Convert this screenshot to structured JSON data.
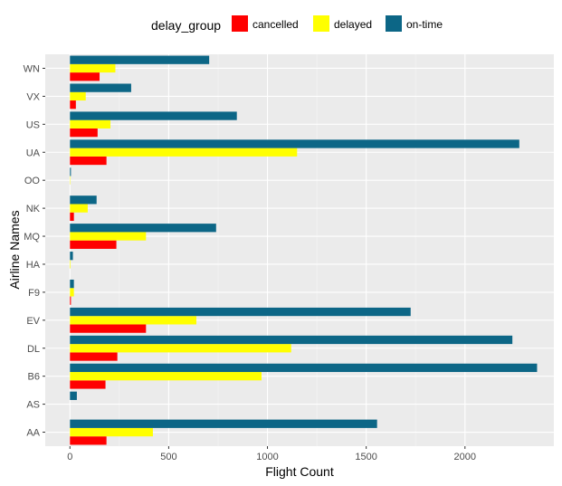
{
  "chart_data": {
    "type": "bar",
    "orientation": "horizontal",
    "title": "",
    "xlabel": "Flight Count",
    "ylabel": "Airline Names",
    "xlim": [
      -125,
      2450
    ],
    "xticks": [
      0,
      500,
      1000,
      1500,
      2000
    ],
    "categories": [
      "AA",
      "AS",
      "B6",
      "DL",
      "EV",
      "F9",
      "HA",
      "MQ",
      "NK",
      "OO",
      "UA",
      "US",
      "VX",
      "WN"
    ],
    "legend": {
      "title": "delay_group",
      "placement": "top",
      "entries": [
        "cancelled",
        "delayed",
        "on-time"
      ]
    },
    "grid": true,
    "series": [
      {
        "name": "cancelled",
        "color": "#ff0000",
        "values": [
          185,
          0,
          180,
          240,
          385,
          5,
          0,
          235,
          20,
          0,
          185,
          140,
          30,
          150
        ]
      },
      {
        "name": "delayed",
        "color": "#ffff00",
        "values": [
          420,
          0,
          970,
          1120,
          640,
          20,
          3,
          385,
          90,
          2,
          1150,
          205,
          80,
          230
        ]
      },
      {
        "name": "on-time",
        "color": "#0c6686",
        "values": [
          1555,
          35,
          2365,
          2240,
          1725,
          20,
          15,
          740,
          135,
          5,
          2275,
          845,
          310,
          705
        ]
      }
    ]
  }
}
